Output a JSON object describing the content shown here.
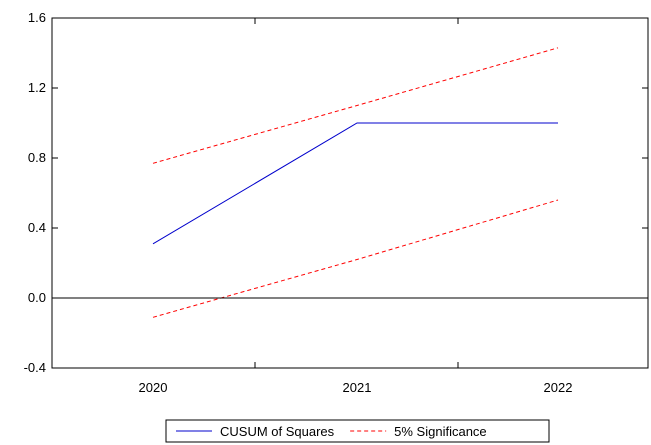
{
  "chart_data": {
    "type": "line",
    "title": "",
    "xlabel": "",
    "ylabel": "",
    "categories": [
      "2020",
      "2021",
      "2022"
    ],
    "ylim": [
      -0.4,
      1.6
    ],
    "yticks": [
      "1.6",
      "1.2",
      "0.8",
      "0.4",
      "0.0",
      "-0.4"
    ],
    "ytick_values": [
      1.6,
      1.2,
      0.8,
      0.4,
      0.0,
      -0.4
    ],
    "grid": false,
    "zero_line": true,
    "legend_position": "bottom-center",
    "series": [
      {
        "name": "CUSUM of Squares",
        "color": "#0000cc",
        "style": "solid",
        "values": [
          0.31,
          1.0,
          1.0
        ]
      },
      {
        "name": "5% Significance",
        "color": "#ff0000",
        "style": "dashed",
        "values": [
          0.77,
          1.1,
          1.43
        ]
      },
      {
        "name": "5% Significance",
        "color": "#ff0000",
        "style": "dashed",
        "values": [
          -0.11,
          0.22,
          0.56
        ],
        "legend": false
      }
    ]
  }
}
